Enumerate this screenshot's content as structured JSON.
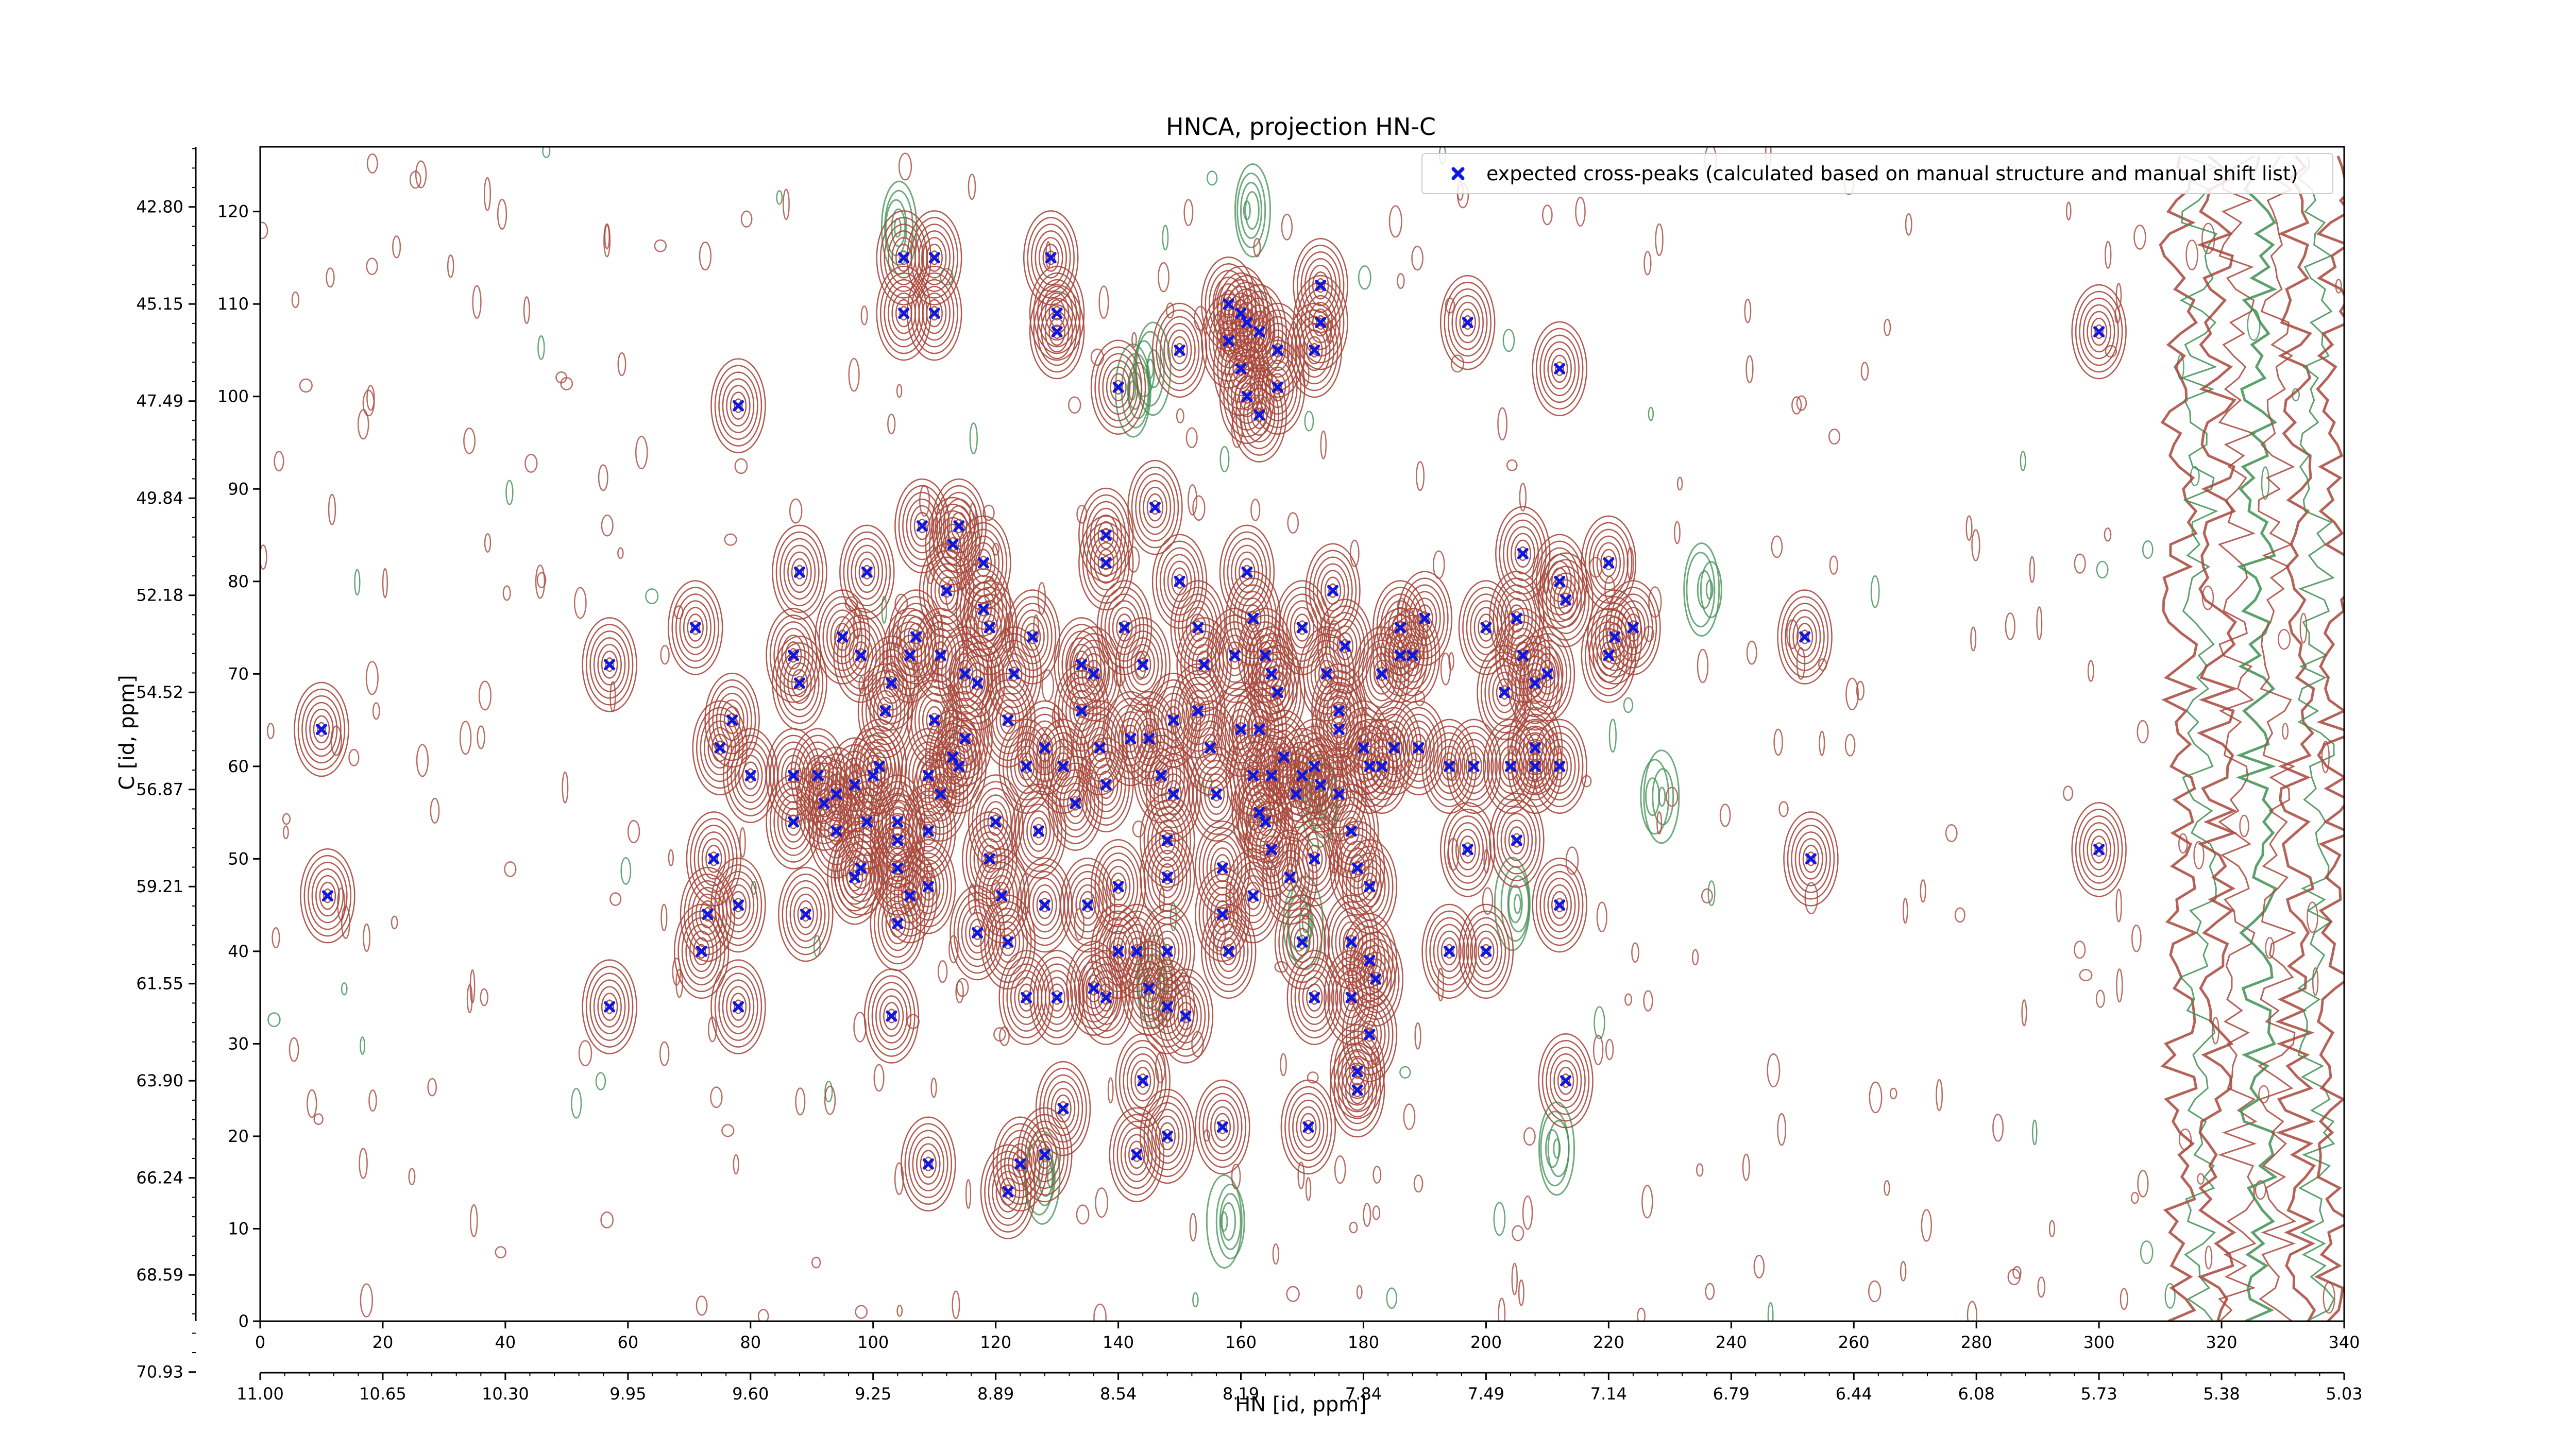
{
  "colors": {
    "positive_contour": "#a8473b",
    "negative_contour": "#3f8f52",
    "peak_marker": "#0f18e0",
    "axis": "#000000",
    "background": "#ffffff"
  },
  "chart_data": {
    "type": "contour",
    "title": "HNCA, projection HN-C",
    "xlabel": "HN [id, ppm]",
    "ylabel": "C [id, ppm]",
    "grid": false,
    "legend_position": "top-right",
    "x_index_range": [
      0,
      340
    ],
    "y_index_range": [
      0,
      127
    ],
    "x_index_ticks": [
      "0",
      "20",
      "40",
      "60",
      "80",
      "100",
      "120",
      "140",
      "160",
      "180",
      "200",
      "220",
      "240",
      "260",
      "280",
      "300",
      "320",
      "340"
    ],
    "y_index_ticks": [
      "0",
      "10",
      "20",
      "30",
      "40",
      "50",
      "60",
      "70",
      "80",
      "90",
      "100",
      "110",
      "120"
    ],
    "x_ppm_ticks": [
      "11.00",
      "10.65",
      "10.30",
      "9.95",
      "9.60",
      "9.25",
      "8.89",
      "8.54",
      "8.19",
      "7.84",
      "7.49",
      "7.14",
      "6.79",
      "6.44",
      "6.08",
      "5.73",
      "5.38",
      "5.03"
    ],
    "y_ppm_ticks": [
      "42.80",
      "45.15",
      "47.49",
      "49.84",
      "52.18",
      "54.52",
      "56.87",
      "59.21",
      "61.55",
      "63.90",
      "66.24",
      "68.59",
      "70.93"
    ],
    "y_ppm_tick_positions": [
      120.5,
      110,
      99.5,
      89,
      78.5,
      68,
      57.5,
      47,
      36.5,
      26,
      15.5,
      5,
      -5.5
    ],
    "series": [
      {
        "name": "expected cross-peaks (calculated based on manual structure and manual shift list)",
        "marker": "x",
        "points": [
          [
            10,
            64
          ],
          [
            11,
            46
          ],
          [
            57,
            71
          ],
          [
            57,
            34
          ],
          [
            71,
            75
          ],
          [
            74,
            50
          ],
          [
            73,
            44
          ],
          [
            72,
            40
          ],
          [
            75,
            62
          ],
          [
            77,
            65
          ],
          [
            78,
            45
          ],
          [
            78,
            34
          ],
          [
            78,
            99
          ],
          [
            80,
            59
          ],
          [
            87,
            72
          ],
          [
            87,
            59
          ],
          [
            87,
            54
          ],
          [
            88,
            69
          ],
          [
            88,
            81
          ],
          [
            89,
            44
          ],
          [
            91,
            59
          ],
          [
            94,
            57
          ],
          [
            94,
            53
          ],
          [
            95,
            74
          ],
          [
            97,
            58
          ],
          [
            97,
            48
          ],
          [
            98,
            72
          ],
          [
            99,
            54
          ],
          [
            99,
            81
          ],
          [
            101,
            60
          ],
          [
            102,
            66
          ],
          [
            103,
            69
          ],
          [
            104,
            52
          ],
          [
            104,
            49
          ],
          [
            104,
            43
          ],
          [
            103,
            33
          ],
          [
            104,
            54
          ],
          [
            105,
            115
          ],
          [
            105,
            109
          ],
          [
            106,
            72
          ],
          [
            107,
            74
          ],
          [
            109,
            59
          ],
          [
            110,
            115
          ],
          [
            110,
            109
          ],
          [
            108,
            86
          ],
          [
            110,
            65
          ],
          [
            109,
            47
          ],
          [
            109,
            17
          ],
          [
            111,
            57
          ],
          [
            111,
            72
          ],
          [
            112,
            79
          ],
          [
            113,
            84
          ],
          [
            114,
            60
          ],
          [
            114,
            86
          ],
          [
            115,
            70
          ],
          [
            115,
            63
          ],
          [
            117,
            42
          ],
          [
            117,
            69
          ],
          [
            118,
            82
          ],
          [
            119,
            75
          ],
          [
            119,
            50
          ],
          [
            120,
            54
          ],
          [
            121,
            46
          ],
          [
            122,
            65
          ],
          [
            122,
            41
          ],
          [
            122,
            14
          ],
          [
            123,
            70
          ],
          [
            124,
            17
          ],
          [
            125,
            35
          ],
          [
            125,
            60
          ],
          [
            126,
            74
          ],
          [
            127,
            53
          ],
          [
            128,
            45
          ],
          [
            128,
            62
          ],
          [
            128,
            18
          ],
          [
            129,
            115
          ],
          [
            130,
            109
          ],
          [
            130,
            107
          ],
          [
            130,
            35
          ],
          [
            131,
            60
          ],
          [
            131,
            23
          ],
          [
            133,
            56
          ],
          [
            134,
            71
          ],
          [
            134,
            66
          ],
          [
            135,
            45
          ],
          [
            136,
            36
          ],
          [
            136,
            70
          ],
          [
            137,
            62
          ],
          [
            138,
            82
          ],
          [
            138,
            58
          ],
          [
            138,
            85
          ],
          [
            138,
            35
          ],
          [
            140,
            47
          ],
          [
            140,
            40
          ],
          [
            140,
            101
          ],
          [
            141,
            75
          ],
          [
            142,
            63
          ],
          [
            143,
            40
          ],
          [
            143,
            18
          ],
          [
            144,
            71
          ],
          [
            144,
            26
          ],
          [
            145,
            63
          ],
          [
            145,
            36
          ],
          [
            146,
            88
          ],
          [
            147,
            59
          ],
          [
            148,
            52
          ],
          [
            149,
            57
          ],
          [
            148,
            48
          ],
          [
            148,
            40
          ],
          [
            148,
            20
          ],
          [
            149,
            65
          ],
          [
            150,
            105
          ],
          [
            150,
            80
          ],
          [
            151,
            33
          ],
          [
            153,
            66
          ],
          [
            153,
            75
          ],
          [
            154,
            71
          ],
          [
            155,
            62
          ],
          [
            156,
            57
          ],
          [
            157,
            49
          ],
          [
            157,
            44
          ],
          [
            158,
            40
          ],
          [
            157,
            21
          ],
          [
            158,
            110
          ],
          [
            158,
            106
          ],
          [
            159,
            72
          ],
          [
            160,
            64
          ],
          [
            160,
            109
          ],
          [
            160,
            103
          ],
          [
            161,
            108
          ],
          [
            161,
            100
          ],
          [
            161,
            81
          ],
          [
            162,
            76
          ],
          [
            162,
            59
          ],
          [
            162,
            46
          ],
          [
            163,
            55
          ],
          [
            163,
            64
          ],
          [
            163,
            98
          ],
          [
            163,
            107
          ],
          [
            164,
            54
          ],
          [
            165,
            51
          ],
          [
            164,
            72
          ],
          [
            165,
            70
          ],
          [
            165,
            59
          ],
          [
            166,
            105
          ],
          [
            166,
            101
          ],
          [
            167,
            61
          ],
          [
            168,
            48
          ],
          [
            169,
            57
          ],
          [
            170,
            75
          ],
          [
            170,
            41
          ],
          [
            171,
            21
          ],
          [
            172,
            60
          ],
          [
            172,
            50
          ],
          [
            172,
            35
          ],
          [
            172,
            105
          ],
          [
            173,
            58
          ],
          [
            173,
            108
          ],
          [
            173,
            112
          ],
          [
            174,
            70
          ],
          [
            175,
            79
          ],
          [
            176,
            64
          ],
          [
            176,
            57
          ],
          [
            177,
            73
          ],
          [
            178,
            41
          ],
          [
            178,
            53
          ],
          [
            178,
            35
          ],
          [
            179,
            27
          ],
          [
            179,
            49
          ],
          [
            179,
            25
          ],
          [
            180,
            62
          ],
          [
            181,
            31
          ],
          [
            181,
            47
          ],
          [
            181,
            39
          ],
          [
            181,
            60
          ],
          [
            182,
            37
          ],
          [
            183,
            70
          ],
          [
            185,
            62
          ],
          [
            186,
            72
          ],
          [
            186,
            75
          ],
          [
            188,
            72
          ],
          [
            189,
            62
          ],
          [
            190,
            76
          ],
          [
            194,
            60
          ],
          [
            194,
            40
          ],
          [
            197,
            51
          ],
          [
            197,
            108
          ],
          [
            198,
            60
          ],
          [
            200,
            75
          ],
          [
            200,
            40
          ],
          [
            203,
            68
          ],
          [
            204,
            60
          ],
          [
            205,
            76
          ],
          [
            205,
            52
          ],
          [
            206,
            83
          ],
          [
            206,
            72
          ],
          [
            208,
            62
          ],
          [
            208,
            69
          ],
          [
            208,
            60
          ],
          [
            210,
            70
          ],
          [
            212,
            60
          ],
          [
            212,
            80
          ],
          [
            213,
            78
          ],
          [
            212,
            103
          ],
          [
            212,
            45
          ],
          [
            213,
            26
          ],
          [
            220,
            72
          ],
          [
            220,
            82
          ],
          [
            221,
            74
          ],
          [
            224,
            75
          ],
          [
            252,
            74
          ],
          [
            253,
            50
          ],
          [
            300,
            107
          ],
          [
            300,
            51
          ],
          [
            148,
            34
          ],
          [
            170,
            59
          ],
          [
            166,
            68
          ],
          [
            183,
            60
          ],
          [
            176,
            66
          ],
          [
            113,
            61
          ],
          [
            118,
            77
          ],
          [
            109,
            53
          ],
          [
            106,
            46
          ],
          [
            100,
            59
          ],
          [
            98,
            49
          ],
          [
            92,
            56
          ]
        ]
      }
    ]
  }
}
